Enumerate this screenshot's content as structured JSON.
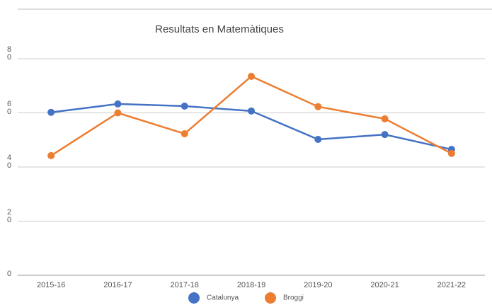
{
  "chart_data": {
    "type": "line",
    "title": "Resultats en Matemàtiques",
    "categories": [
      "2015-16",
      "2016-17",
      "2017-18",
      "2018-19",
      "2019-20",
      "2020-21",
      "2021-22"
    ],
    "series": [
      {
        "name": "Catalunya",
        "color": "#4472c4",
        "values": [
          60.2,
          63.3,
          62.5,
          60.7,
          50.2,
          52,
          46.5
        ]
      },
      {
        "name": "Broggi",
        "color": "#ed7d31",
        "values": [
          44.2,
          60,
          52.3,
          73.5,
          62.3,
          57.8,
          45
        ]
      }
    ],
    "ylim": [
      0,
      80
    ],
    "yticks": [
      0,
      20,
      40,
      60,
      80
    ],
    "grid": true
  }
}
